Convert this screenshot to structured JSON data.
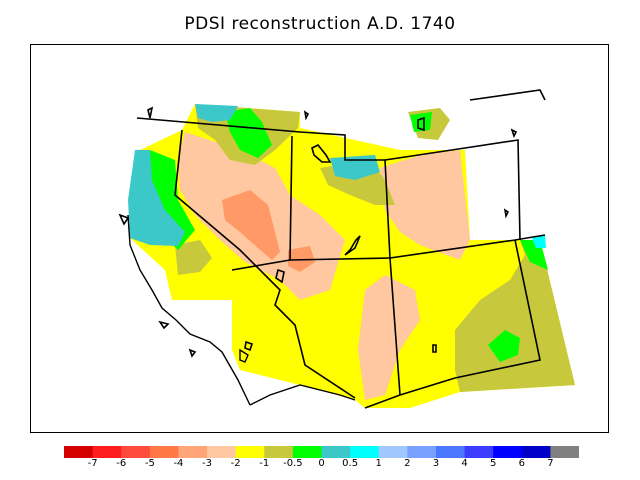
{
  "title": "PDSI reconstruction A.D. 1740",
  "legend": {
    "colors": [
      "#d20000",
      "#ff1e1e",
      "#ff4b3c",
      "#ff7846",
      "#ffa578",
      "#ffc8a0",
      "#ffff00",
      "#c8c83c",
      "#00ff00",
      "#3cc8c8",
      "#00ffff",
      "#a0c8ff",
      "#78a0ff",
      "#4b78ff",
      "#3c3cff",
      "#0000ff",
      "#0000c8",
      "#808080"
    ],
    "ticks": [
      "-7",
      "-6",
      "-5",
      "-4",
      "-3",
      "-2",
      "-1",
      "-0.5",
      "0",
      "0.5",
      "1",
      "2",
      "3",
      "4",
      "5",
      "6",
      "7"
    ]
  },
  "map_colors": {
    "yellow": "#ffff00",
    "peach": "#ffc8a0",
    "salmon": "#ff9966",
    "olive": "#c8c83c",
    "green": "#00ff00",
    "cyan": "#3cc8c8",
    "aqua": "#00ffff"
  }
}
